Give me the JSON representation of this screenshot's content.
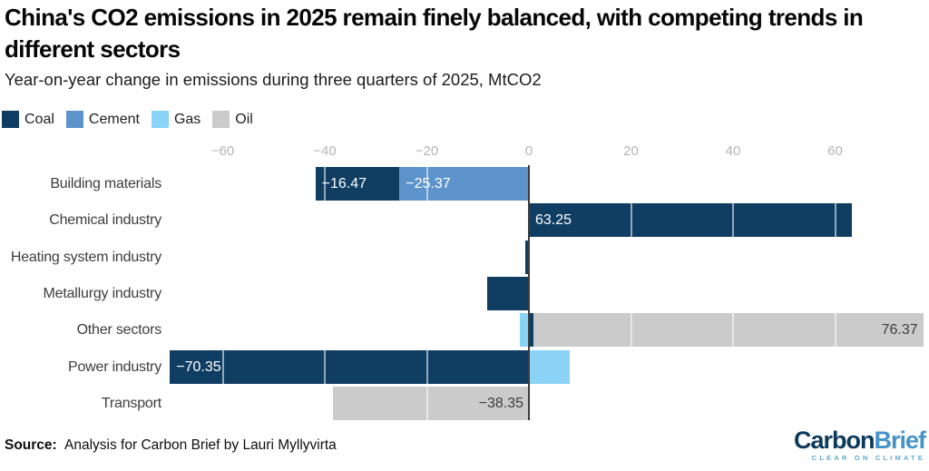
{
  "header": {
    "title_line1": "China's CO2 emissions in 2025 remain finely balanced, with competing trends in",
    "title_line2": "different sectors",
    "subtitle": "Year-on-year change in emissions during three quarters of 2025, MtCO2"
  },
  "legend": [
    {
      "label": "Coal",
      "color": "#103e63"
    },
    {
      "label": "Cement",
      "color": "#5d93cb"
    },
    {
      "label": "Gas",
      "color": "#8bd2f7"
    },
    {
      "label": "Oil",
      "color": "#cbcbcb"
    }
  ],
  "footer": {
    "source_label": "Source:",
    "source_text": "Analysis for Carbon Brief by Lauri Myllyvirta"
  },
  "logo": {
    "part1": "Carbon",
    "part2": "Brief",
    "tagline": "CLEAR ON CLIMATE",
    "color1": "#0c3a5c",
    "color2": "#4493c9",
    "tagline_color": "#5fa8d3"
  },
  "chart_data": {
    "type": "bar",
    "orientation": "horizontal",
    "stacked": true,
    "title": "China's CO2 emissions in 2025 remain finely balanced, with competing trends in different sectors",
    "subtitle": "Year-on-year change in emissions during three quarters of 2025, MtCO2",
    "unit": "MtCO2",
    "legend_position": "top-left",
    "grid": "vertical gridlines visible as white lines over bars",
    "xlim": [
      -75,
      78
    ],
    "x_axis": {
      "ticks": [
        {
          "value": -60,
          "label": "−60"
        },
        {
          "value": -40,
          "label": "−40"
        },
        {
          "value": -20,
          "label": "−20"
        },
        {
          "value": 0,
          "label": "0"
        },
        {
          "value": 20,
          "label": "20"
        },
        {
          "value": 40,
          "label": "40"
        },
        {
          "value": 60,
          "label": "60"
        }
      ]
    },
    "categories": [
      "Building materials",
      "Chemical industry",
      "Heating system industry",
      "Metallurgy industry",
      "Other sectors",
      "Power industry",
      "Transport"
    ],
    "rows": [
      {
        "category": "Building materials",
        "segments": [
          {
            "series": "Coal",
            "value": -16.47,
            "label": "−16.47",
            "label_style": "light",
            "label_align": "start"
          },
          {
            "series": "Cement",
            "value": -25.37,
            "label": "−25.37",
            "label_style": "light",
            "label_align": "start"
          }
        ]
      },
      {
        "category": "Chemical industry",
        "segments": [
          {
            "series": "Coal",
            "value": 63.25,
            "label": "63.25",
            "label_style": "light",
            "label_align": "start"
          }
        ]
      },
      {
        "category": "Heating system industry",
        "segments": [
          {
            "series": "Coal",
            "value": -0.7
          }
        ]
      },
      {
        "category": "Metallurgy industry",
        "segments": [
          {
            "series": "Coal",
            "value": -8.2
          }
        ]
      },
      {
        "category": "Other sectors",
        "segments": [
          {
            "series": "Gas",
            "value": -1.8
          },
          {
            "series": "Coal",
            "value": 0.9
          },
          {
            "series": "Oil",
            "value": 76.37,
            "label": "76.37",
            "label_style": "dark",
            "label_align": "end"
          }
        ]
      },
      {
        "category": "Power industry",
        "segments": [
          {
            "series": "Coal",
            "value": -70.35,
            "label": "−70.35",
            "label_style": "light",
            "label_align": "start"
          },
          {
            "series": "Gas",
            "value": 8.0
          }
        ]
      },
      {
        "category": "Transport",
        "segments": [
          {
            "series": "Oil",
            "value": -38.35,
            "label": "−38.35",
            "label_style": "dark",
            "label_align": "end"
          }
        ]
      }
    ]
  }
}
